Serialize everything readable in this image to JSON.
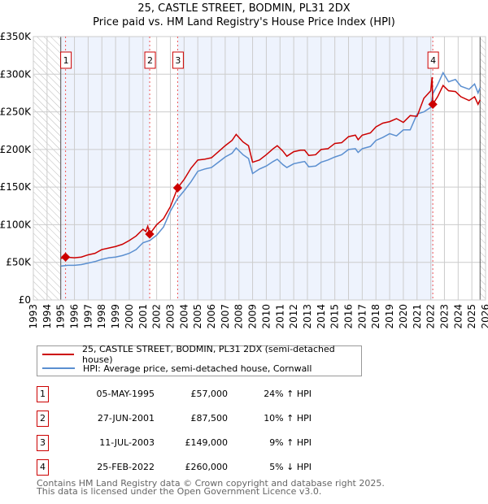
{
  "chart_data": {
    "type": "line",
    "title": "25, CASTLE STREET, BODMIN, PL31 2DX",
    "subtitle": "Price paid vs. HM Land Registry's House Price Index (HPI)",
    "xlim": [
      1993,
      2026
    ],
    "ylim": [
      0,
      350000
    ],
    "x_ticks": [
      "1993",
      "1994",
      "1995",
      "1996",
      "1997",
      "1998",
      "1999",
      "2000",
      "2001",
      "2002",
      "2003",
      "2004",
      "2005",
      "2006",
      "2007",
      "2008",
      "2009",
      "2010",
      "2011",
      "2012",
      "2013",
      "2014",
      "2015",
      "2016",
      "2017",
      "2018",
      "2019",
      "2020",
      "2021",
      "2022",
      "2023",
      "2024",
      "2025",
      "2026"
    ],
    "y_ticks": [
      {
        "v": 0,
        "label": "£0"
      },
      {
        "v": 50000,
        "label": "£50K"
      },
      {
        "v": 100000,
        "label": "£100K"
      },
      {
        "v": 150000,
        "label": "£150K"
      },
      {
        "v": 200000,
        "label": "£200K"
      },
      {
        "v": 250000,
        "label": "£250K"
      },
      {
        "v": 300000,
        "label": "£300K"
      },
      {
        "v": 350000,
        "label": "£350K"
      }
    ],
    "grid": true,
    "series": [
      {
        "name": "25, CASTLE STREET, BODMIN, PL31 2DX (semi-detached house)",
        "color": "#cc0000",
        "x": [
          1995.0,
          1995.35,
          1996,
          1996.5,
          1997,
          1997.5,
          1998,
          1998.5,
          1999,
          1999.5,
          2000,
          2000.5,
          2001,
          2001.2,
          2001.35,
          2001.49,
          2002,
          2002.5,
          2003,
          2003.53,
          2004,
          2004.5,
          2005,
          2005.5,
          2006,
          2006.5,
          2007,
          2007.5,
          2007.8,
          2008.3,
          2008.7,
          2009,
          2009.5,
          2010,
          2010.5,
          2010.8,
          2011.2,
          2011.5,
          2012,
          2012.5,
          2012.8,
          2013.1,
          2013.6,
          2014,
          2014.5,
          2015,
          2015.5,
          2016,
          2016.5,
          2016.7,
          2017,
          2017.6,
          2018,
          2018.5,
          2019,
          2019.5,
          2020,
          2020.5,
          2021,
          2021.5,
          2022.0,
          2022.1,
          2022.15,
          2022.5,
          2022.9,
          2023.3,
          2023.8,
          2024.2,
          2024.8,
          2025.2,
          2025.45,
          2025.6
        ],
        "y": [
          55000,
          57000,
          56000,
          57000,
          60000,
          62000,
          67000,
          69000,
          71000,
          74000,
          79000,
          85000,
          94000,
          91000,
          98000,
          87500,
          100000,
          108000,
          124000,
          149000,
          160000,
          175000,
          186000,
          187000,
          189000,
          197000,
          205000,
          212000,
          220000,
          210000,
          205000,
          183000,
          186000,
          193000,
          201000,
          205000,
          198000,
          191000,
          197000,
          199000,
          199000,
          192000,
          193000,
          200000,
          201000,
          208000,
          209000,
          217000,
          219000,
          213000,
          219000,
          222000,
          230000,
          235000,
          237000,
          241000,
          236000,
          245000,
          244000,
          268000,
          278000,
          296000,
          260000,
          270000,
          285000,
          278000,
          277000,
          270000,
          265000,
          270000,
          260000,
          266000
        ]
      },
      {
        "name": "HPI: Average price, semi-detached house, Cornwall",
        "color": "#5b8fd0",
        "x": [
          1995.0,
          1995.5,
          1996,
          1996.5,
          1997,
          1997.5,
          1998,
          1998.5,
          1999,
          1999.5,
          2000,
          2000.5,
          2001,
          2001.5,
          2002,
          2002.5,
          2003,
          2003.5,
          2004,
          2004.5,
          2005,
          2005.5,
          2006,
          2006.5,
          2007,
          2007.5,
          2007.8,
          2008.3,
          2008.7,
          2009,
          2009.5,
          2010,
          2010.5,
          2010.8,
          2011.2,
          2011.5,
          2012,
          2012.5,
          2012.8,
          2013.1,
          2013.6,
          2014,
          2014.5,
          2015,
          2015.5,
          2016,
          2016.5,
          2016.7,
          2017,
          2017.6,
          2018,
          2018.5,
          2019,
          2019.5,
          2020,
          2020.5,
          2021,
          2021.5,
          2022.0,
          2022.15,
          2022.5,
          2022.9,
          2023.3,
          2023.8,
          2024.2,
          2024.8,
          2025.2,
          2025.45,
          2025.6
        ],
        "y": [
          45000,
          46000,
          46000,
          47000,
          49000,
          51000,
          54000,
          56000,
          57000,
          59000,
          62000,
          67000,
          76000,
          79000,
          86000,
          97000,
          118000,
          134000,
          145000,
          157000,
          171000,
          174000,
          176000,
          183000,
          190000,
          195000,
          202000,
          193000,
          188000,
          168000,
          174000,
          178000,
          184000,
          187000,
          180000,
          176000,
          181000,
          183000,
          184000,
          177000,
          178000,
          183000,
          186000,
          190000,
          193000,
          200000,
          201000,
          196000,
          201000,
          204000,
          212000,
          216000,
          221000,
          218000,
          226000,
          226000,
          247000,
          250000,
          256000,
          274000,
          286000,
          302000,
          290000,
          293000,
          284000,
          280000,
          287000,
          275000,
          282000
        ]
      }
    ],
    "shaded_periods": [
      [
        1995.0,
        2001.49
      ],
      [
        2003.53,
        2022.15
      ]
    ],
    "hatched_periods": [
      [
        1993,
        1995.0
      ],
      [
        2025.6,
        2026
      ]
    ],
    "sales": [
      {
        "label": "1",
        "x": 1995.35,
        "y": 57000
      },
      {
        "label": "2",
        "x": 2001.49,
        "y": 87500
      },
      {
        "label": "3",
        "x": 2003.53,
        "y": 149000
      },
      {
        "label": "4",
        "x": 2022.15,
        "y": 260000
      }
    ],
    "legend_placement": "below"
  },
  "table": [
    {
      "num": "1",
      "date": "05-MAY-1995",
      "price": "£57,000",
      "hpi": "24% ↑ HPI"
    },
    {
      "num": "2",
      "date": "27-JUN-2001",
      "price": "£87,500",
      "hpi": "10% ↑ HPI"
    },
    {
      "num": "3",
      "date": "11-JUL-2003",
      "price": "£149,000",
      "hpi": "9% ↑ HPI"
    },
    {
      "num": "4",
      "date": "25-FEB-2022",
      "price": "£260,000",
      "hpi": "5% ↓ HPI"
    }
  ],
  "footer": {
    "line1": "Contains HM Land Registry data © Crown copyright and database right 2025.",
    "line2": "This data is licensed under the Open Government Licence v3.0."
  }
}
